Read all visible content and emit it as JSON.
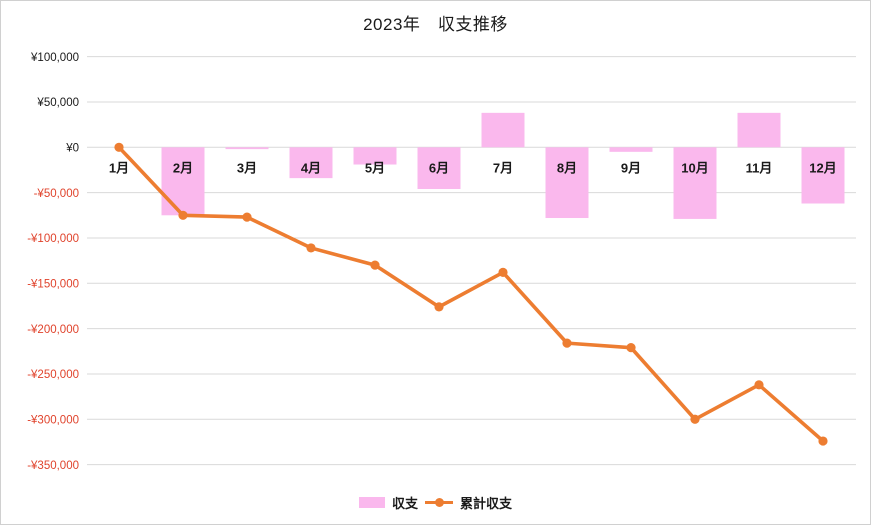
{
  "title": "2023年　収支推移",
  "colors": {
    "bar": "#FAB8ED",
    "line": "#ED7D31",
    "grid": "#D9D9D9",
    "chart_border": "#D0D0D0",
    "tick_positive": "#1A1A1A",
    "tick_negative": "#E0432C",
    "text": "#1A1A1A",
    "background": "#FFFFFF"
  },
  "legend": [
    {
      "label": "収支",
      "series_type": "bar"
    },
    {
      "label": "累計収支",
      "series_type": "line"
    }
  ],
  "chart_data": {
    "type": "combo",
    "title": "2023年　収支推移",
    "categories": [
      "1月",
      "2月",
      "3月",
      "4月",
      "5月",
      "6月",
      "7月",
      "8月",
      "9月",
      "10月",
      "11月",
      "12月"
    ],
    "series": [
      {
        "name": "収支",
        "type": "bar",
        "values": [
          0,
          -75000,
          -2000,
          -34000,
          -19000,
          -46000,
          38000,
          -78000,
          -5000,
          -79000,
          38000,
          -62000
        ]
      },
      {
        "name": "累計収支",
        "type": "line",
        "values": [
          0,
          -75000,
          -77000,
          -111000,
          -130000,
          -176000,
          -138000,
          -216000,
          -221000,
          -300000,
          -262000,
          -324000
        ]
      }
    ],
    "ylim": [
      -350000,
      100000
    ],
    "ytick_step": 50000,
    "yticks": [
      {
        "value": 100000,
        "label": "¥100,000"
      },
      {
        "value": 50000,
        "label": "¥50,000"
      },
      {
        "value": 0,
        "label": "¥0"
      },
      {
        "value": -50000,
        "label": "-¥50,000"
      },
      {
        "value": -100000,
        "label": "-¥100,000"
      },
      {
        "value": -150000,
        "label": "-¥150,000"
      },
      {
        "value": -200000,
        "label": "-¥200,000"
      },
      {
        "value": -250000,
        "label": "-¥250,000"
      },
      {
        "value": -300000,
        "label": "-¥300,000"
      },
      {
        "value": -350000,
        "label": "-¥350,000"
      }
    ],
    "grid": "horizontal",
    "legend_position": "bottom"
  }
}
